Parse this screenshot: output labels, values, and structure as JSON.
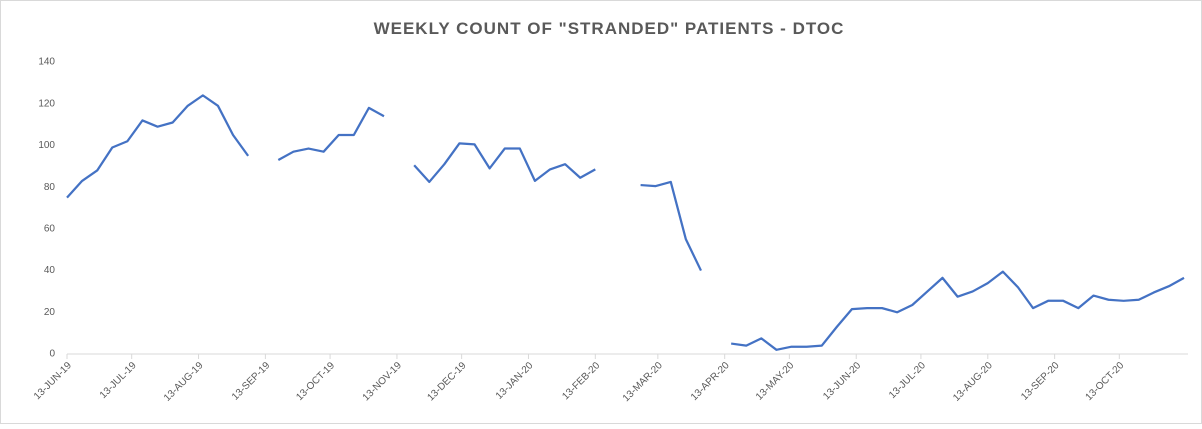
{
  "chart_data": {
    "type": "line",
    "title": "WEEKLY COUNT OF \"STRANDED\" PATIENTS - DTOC",
    "x": [
      "2019-06-13",
      "2019-06-20",
      "2019-06-27",
      "2019-07-04",
      "2019-07-11",
      "2019-07-18",
      "2019-07-25",
      "2019-08-01",
      "2019-08-08",
      "2019-08-15",
      "2019-08-22",
      "2019-08-29",
      "2019-09-05",
      "2019-09-12",
      "2019-09-19",
      "2019-09-26",
      "2019-10-03",
      "2019-10-10",
      "2019-10-17",
      "2019-10-24",
      "2019-10-31",
      "2019-11-07",
      "2019-11-14",
      "2019-11-21",
      "2019-11-28",
      "2019-12-05",
      "2019-12-12",
      "2019-12-19",
      "2019-12-26",
      "2020-01-02",
      "2020-01-09",
      "2020-01-16",
      "2020-01-23",
      "2020-01-30",
      "2020-02-06",
      "2020-02-13",
      "2020-02-20",
      "2020-02-27",
      "2020-03-05",
      "2020-03-12",
      "2020-03-19",
      "2020-03-26",
      "2020-04-02",
      "2020-04-09",
      "2020-04-16",
      "2020-04-23",
      "2020-04-30",
      "2020-05-07",
      "2020-05-14",
      "2020-05-21",
      "2020-05-28",
      "2020-06-04",
      "2020-06-11",
      "2020-06-18",
      "2020-06-25",
      "2020-07-02",
      "2020-07-09",
      "2020-07-16",
      "2020-07-23",
      "2020-07-30",
      "2020-08-06",
      "2020-08-13",
      "2020-08-20",
      "2020-08-27",
      "2020-09-03",
      "2020-09-10",
      "2020-09-17",
      "2020-09-24",
      "2020-10-01",
      "2020-10-08",
      "2020-10-15",
      "2020-10-22",
      "2020-10-29",
      "2020-11-05",
      "2020-11-12"
    ],
    "series": [
      {
        "color": "#4472c4",
        "values": [
          75,
          83,
          88,
          99,
          102,
          112,
          109,
          111,
          119,
          124,
          119,
          105,
          95,
          null,
          93,
          97,
          98.5,
          97,
          105,
          105,
          118,
          114,
          null,
          90.5,
          82.5,
          91,
          101,
          100.5,
          89,
          98.5,
          98.5,
          83,
          88.5,
          91,
          84.5,
          88.5,
          null,
          null,
          81,
          80.5,
          82.5,
          55,
          40,
          null,
          5,
          4,
          7.5,
          2,
          3.5,
          3.5,
          4,
          13,
          21.5,
          22,
          22,
          20,
          23.5,
          30,
          36.5,
          27.5,
          30,
          34,
          39.5,
          32,
          22,
          25.5,
          25.5,
          22,
          28,
          26,
          25.5,
          26,
          29.5,
          32.5,
          36.5
        ]
      }
    ],
    "xlim": [
      "2019-06-13",
      "2020-11-12"
    ],
    "xticks": [
      {
        "value": "2019-06-13",
        "label": "13-JUN-19"
      },
      {
        "value": "2019-07-13",
        "label": "13-JUL-19"
      },
      {
        "value": "2019-08-13",
        "label": "13-AUG-19"
      },
      {
        "value": "2019-09-13",
        "label": "13-SEP-19"
      },
      {
        "value": "2019-10-13",
        "label": "13-OCT-19"
      },
      {
        "value": "2019-11-13",
        "label": "13-NOV-19"
      },
      {
        "value": "2019-12-13",
        "label": "13-DEC-19"
      },
      {
        "value": "2020-01-13",
        "label": "13-JAN-20"
      },
      {
        "value": "2020-02-13",
        "label": "13-FEB-20"
      },
      {
        "value": "2020-03-13",
        "label": "13-MAR-20"
      },
      {
        "value": "2020-04-13",
        "label": "13-APR-20"
      },
      {
        "value": "2020-05-13",
        "label": "13-MAY-20"
      },
      {
        "value": "2020-06-13",
        "label": "13-JUN-20"
      },
      {
        "value": "2020-07-13",
        "label": "13-JUL-20"
      },
      {
        "value": "2020-08-13",
        "label": "13-AUG-20"
      },
      {
        "value": "2020-09-13",
        "label": "13-SEP-20"
      },
      {
        "value": "2020-10-13",
        "label": "13-OCT-20"
      }
    ],
    "ylim": [
      0,
      140
    ],
    "yticks": [
      0,
      20,
      40,
      60,
      80,
      100,
      120,
      140
    ],
    "grid": false
  }
}
